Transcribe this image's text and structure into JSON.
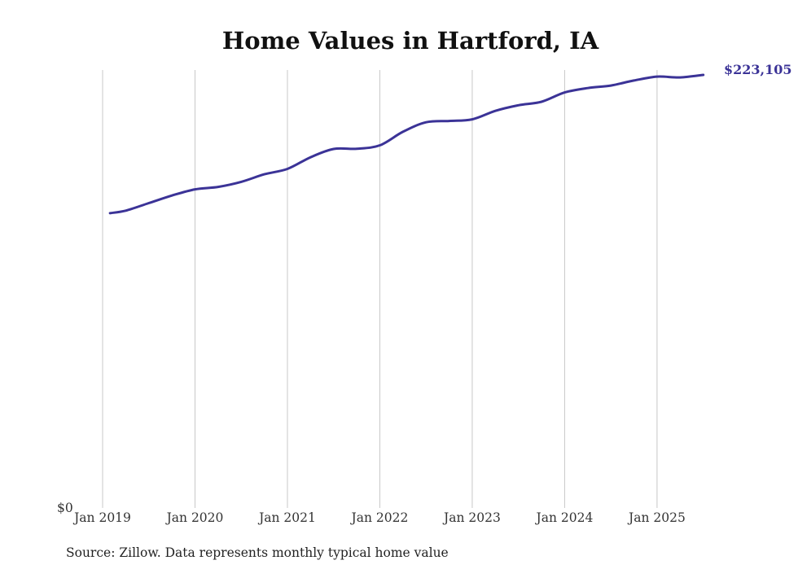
{
  "chart_data": {
    "type": "line",
    "title": "Home Values in Hartford, IA",
    "source": "Source: Zillow. Data represents monthly typical home value",
    "y_zero_label": "$0",
    "end_label": "$223,105",
    "x_ticks": [
      {
        "label": "Jan 2019",
        "t": 2019.0
      },
      {
        "label": "Jan 2020",
        "t": 2020.0
      },
      {
        "label": "Jan 2021",
        "t": 2021.0
      },
      {
        "label": "Jan 2022",
        "t": 2022.0
      },
      {
        "label": "Jan 2023",
        "t": 2023.0
      },
      {
        "label": "Jan 2024",
        "t": 2024.0
      },
      {
        "label": "Jan 2025",
        "t": 2025.0
      }
    ],
    "xlim": [
      2019.0,
      2025.6
    ],
    "ylim": [
      0,
      223105
    ],
    "series": [
      {
        "name": "Typical home value",
        "color": "#3b3397",
        "x": [
          2019.08,
          2019.25,
          2019.5,
          2019.75,
          2020.0,
          2020.25,
          2020.5,
          2020.75,
          2021.0,
          2021.25,
          2021.5,
          2021.75,
          2022.0,
          2022.25,
          2022.5,
          2022.75,
          2023.0,
          2023.25,
          2023.5,
          2023.75,
          2024.0,
          2024.25,
          2024.5,
          2024.75,
          2025.0,
          2025.25,
          2025.5
        ],
        "values": [
          151600,
          152900,
          156800,
          160700,
          163900,
          165200,
          167800,
          171700,
          174500,
          180500,
          184800,
          184900,
          186700,
          193700,
          198600,
          199300,
          200100,
          204500,
          207400,
          209200,
          214000,
          216300,
          217600,
          220200,
          222200,
          221800,
          223105
        ]
      }
    ]
  }
}
